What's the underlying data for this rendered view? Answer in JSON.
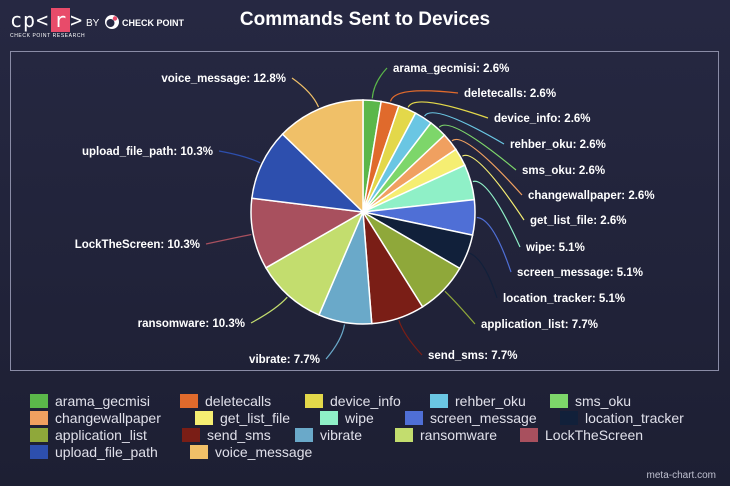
{
  "header": {
    "logo_text": "cp<",
    "logo_r": "r",
    "logo_end": ">",
    "logo_subtitle": "CHECK POINT RESEARCH",
    "by_text": "BY",
    "company": "CHECK POINT"
  },
  "footer": {
    "credit": "meta-chart.com"
  },
  "chart_data": {
    "type": "pie",
    "title": "Commands Sent to Devices",
    "legend_position": "bottom",
    "slices": [
      {
        "name": "arama_gecmisi",
        "value": 2.6,
        "label": "arama_gecmisi: 2.6%",
        "color": "#5bb74a"
      },
      {
        "name": "deletecalls",
        "value": 2.6,
        "label": "deletecalls: 2.6%",
        "color": "#e06a2c"
      },
      {
        "name": "device_info",
        "value": 2.6,
        "label": "device_info: 2.6%",
        "color": "#e3d84a"
      },
      {
        "name": "rehber_oku",
        "value": 2.6,
        "label": "rehber_oku: 2.6%",
        "color": "#6ac6e3"
      },
      {
        "name": "sms_oku",
        "value": 2.6,
        "label": "sms_oku: 2.6%",
        "color": "#7dd66a"
      },
      {
        "name": "changewallpaper",
        "value": 2.6,
        "label": "changewallpaper: 2.6%",
        "color": "#f0a060"
      },
      {
        "name": "get_list_file",
        "value": 2.6,
        "label": "get_list_file: 2.6%",
        "color": "#f5ee72"
      },
      {
        "name": "wipe",
        "value": 5.1,
        "label": "wipe: 5.1%",
        "color": "#8ff0c7"
      },
      {
        "name": "screen_message",
        "value": 5.1,
        "label": "screen_message: 5.1%",
        "color": "#4f6fd6"
      },
      {
        "name": "location_tracker",
        "value": 5.1,
        "label": "location_tracker: 5.1%",
        "color": "#11203a"
      },
      {
        "name": "application_list",
        "value": 7.7,
        "label": "application_list: 7.7%",
        "color": "#8fa83a"
      },
      {
        "name": "send_sms",
        "value": 7.7,
        "label": "send_sms: 7.7%",
        "color": "#7a1e16"
      },
      {
        "name": "vibrate",
        "value": 7.7,
        "label": "vibrate: 7.7%",
        "color": "#6aa9c9"
      },
      {
        "name": "ransomware",
        "value": 10.3,
        "label": "ransomware: 10.3%",
        "color": "#c3dd6e"
      },
      {
        "name": "LockTheScreen",
        "value": 10.3,
        "label": "LockTheScreen: 10.3%",
        "color": "#a8505e"
      },
      {
        "name": "upload_file_path",
        "value": 10.3,
        "label": "upload_file_path: 10.3%",
        "color": "#2d4fae"
      },
      {
        "name": "voice_message",
        "value": 12.8,
        "label": "voice_message: 12.8%",
        "color": "#f0c068"
      }
    ]
  }
}
